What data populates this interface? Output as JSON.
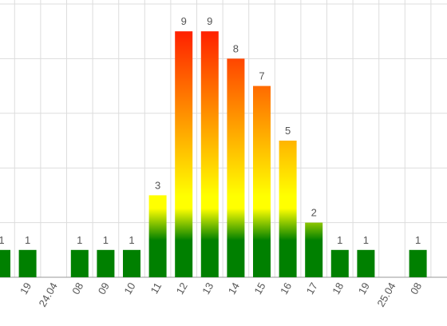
{
  "chart_data": {
    "type": "bar",
    "categories": [
      null,
      "19",
      "24.04",
      "08",
      "09",
      "10",
      "11",
      "12",
      "13",
      "14",
      "15",
      "16",
      "17",
      "18",
      "19",
      "25.04",
      "08"
    ],
    "values": [
      1,
      1,
      null,
      1,
      1,
      1,
      3,
      9,
      9,
      8,
      7,
      5,
      2,
      1,
      1,
      null,
      1
    ],
    "ylim": [
      0,
      10
    ],
    "yticks": [
      0,
      2,
      4,
      6,
      8,
      10
    ],
    "grid": true,
    "colors": [
      "#008000",
      "#ffff00",
      "#ff2000"
    ]
  }
}
